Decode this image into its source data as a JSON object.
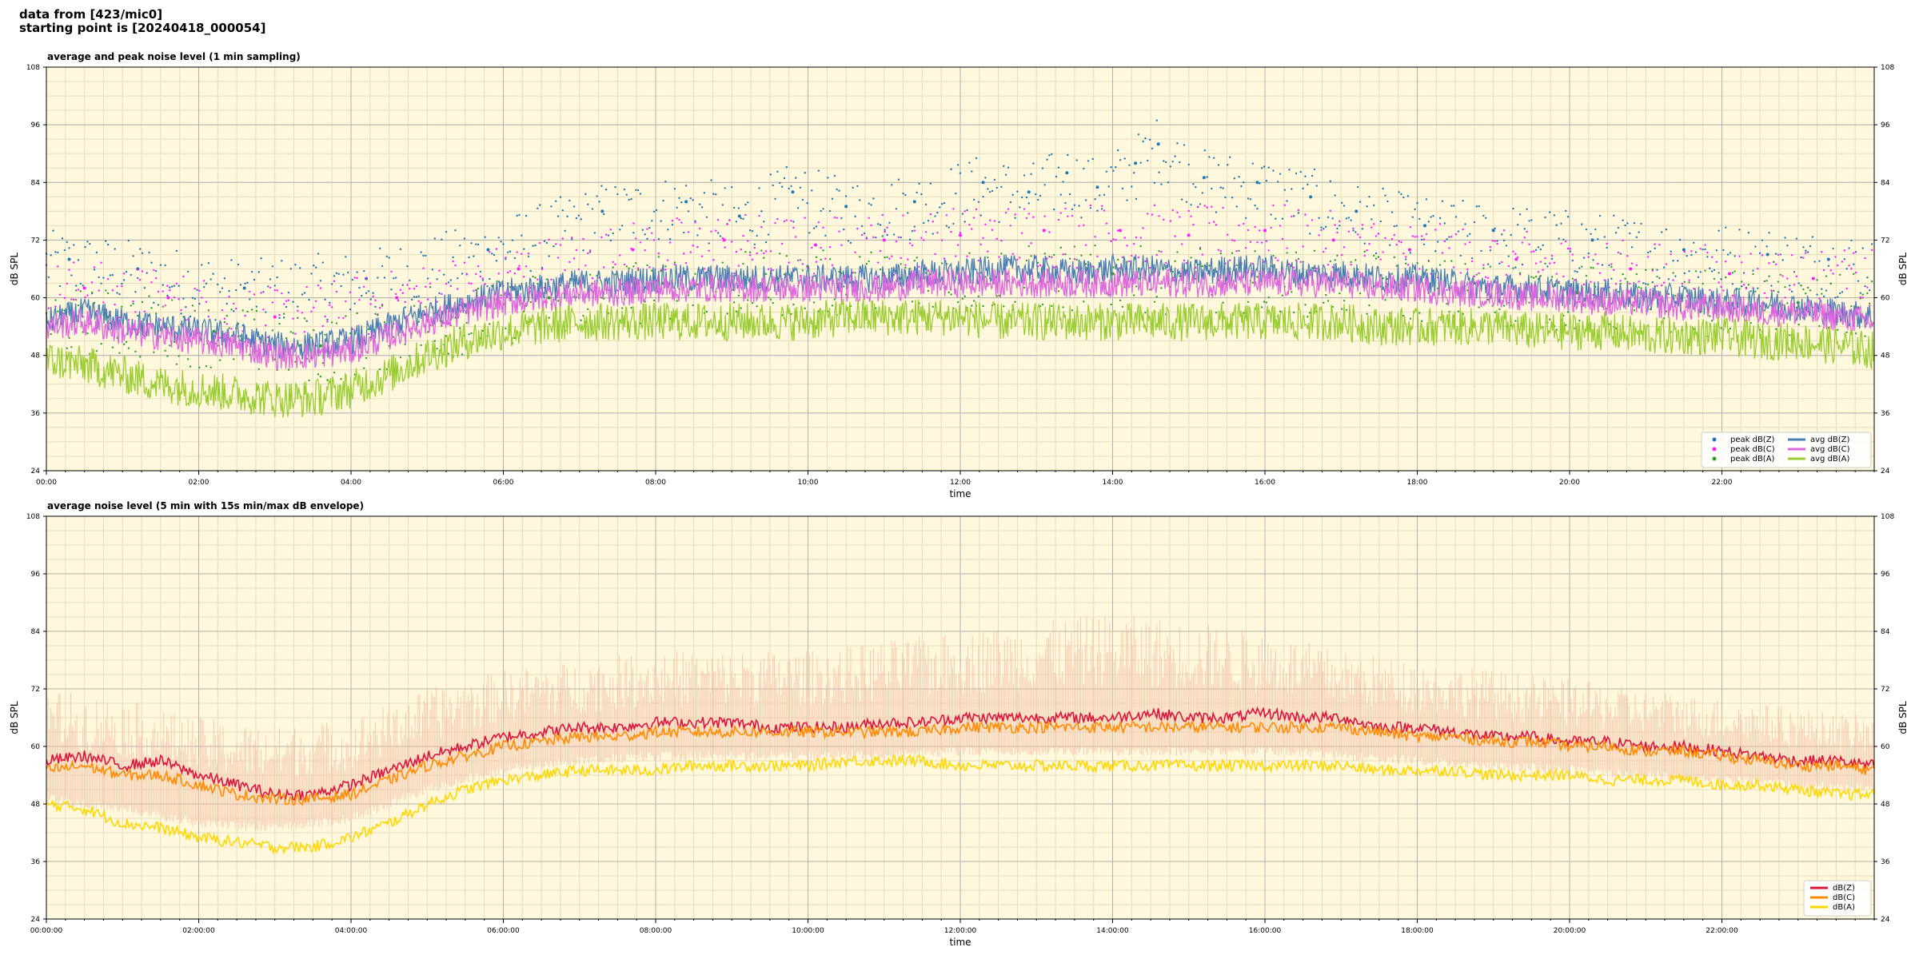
{
  "header": {
    "line1": "data from [423/mic0]",
    "line2": "starting point is [20240418_000054]"
  },
  "colors": {
    "plot_bg": "#fff8dc",
    "peak_z": "#1f77b4",
    "peak_c": "#ff1aff",
    "peak_a": "#2ca02c",
    "avg_z": "#4a7fb5",
    "avg_c": "#e066e0",
    "avg_a": "#9acd32",
    "dbz": "#dc143c",
    "dbc": "#ff8c00",
    "dba": "#ffd700",
    "envelope": "#f4b8a0"
  },
  "chart_data": [
    {
      "type": "line",
      "title": "average and peak noise level (1 min sampling)",
      "xlabel": "time",
      "ylabel": "dB SPL",
      "x_unit": "hours",
      "xlim": [
        0,
        24
      ],
      "ylim": [
        24,
        108
      ],
      "yticks": [
        24,
        36,
        48,
        60,
        72,
        84,
        96,
        108
      ],
      "xticks": [
        {
          "x": 0,
          "label": "00:00"
        },
        {
          "x": 2,
          "label": "02:00"
        },
        {
          "x": 4,
          "label": "04:00"
        },
        {
          "x": 6,
          "label": "06:00"
        },
        {
          "x": 8,
          "label": "08:00"
        },
        {
          "x": 10,
          "label": "10:00"
        },
        {
          "x": 12,
          "label": "12:00"
        },
        {
          "x": 14,
          "label": "14:00"
        },
        {
          "x": 16,
          "label": "16:00"
        },
        {
          "x": 18,
          "label": "18:00"
        },
        {
          "x": 20,
          "label": "20:00"
        },
        {
          "x": 22,
          "label": "22:00"
        }
      ],
      "grid": true,
      "legend_position": "lower-right",
      "legend_columns": 2,
      "legend": [
        {
          "name": "peak dB(Z)",
          "kind": "dot",
          "color_key": "peak_z"
        },
        {
          "name": "peak dB(C)",
          "kind": "dot",
          "color_key": "peak_c"
        },
        {
          "name": "peak dB(A)",
          "kind": "dot",
          "color_key": "peak_a"
        },
        {
          "name": "avg dB(Z)",
          "kind": "line",
          "color_key": "avg_z"
        },
        {
          "name": "avg dB(C)",
          "kind": "line",
          "color_key": "avg_c"
        },
        {
          "name": "avg dB(A)",
          "kind": "line",
          "color_key": "avg_a"
        }
      ],
      "series": [
        {
          "name": "avg dB(Z)",
          "color_key": "avg_z",
          "x": [
            0,
            0.5,
            1,
            1.5,
            2,
            2.5,
            3,
            3.5,
            4,
            4.5,
            5,
            5.5,
            6,
            6.5,
            7,
            7.5,
            8,
            8.5,
            9,
            9.5,
            10,
            10.5,
            11,
            11.5,
            12,
            12.5,
            13,
            13.5,
            14,
            14.5,
            15,
            15.5,
            16,
            16.5,
            17,
            17.5,
            18,
            18.5,
            19,
            19.5,
            20,
            20.5,
            21,
            21.5,
            22,
            22.5,
            23,
            23.5,
            24
          ],
          "y": [
            55,
            57,
            55,
            54,
            53,
            52,
            50,
            50,
            51,
            54,
            57,
            59,
            61,
            62,
            63,
            63,
            64,
            64,
            64,
            64,
            64,
            64,
            64,
            65,
            65,
            66,
            66,
            65,
            66,
            66,
            65,
            66,
            66,
            65,
            65,
            64,
            64,
            63,
            62,
            62,
            61,
            61,
            60,
            60,
            59,
            59,
            58,
            57,
            56
          ]
        },
        {
          "name": "avg dB(C)",
          "color_key": "avg_c",
          "x": [
            0,
            0.5,
            1,
            1.5,
            2,
            2.5,
            3,
            3.5,
            4,
            4.5,
            5,
            5.5,
            6,
            6.5,
            7,
            7.5,
            8,
            8.5,
            9,
            9.5,
            10,
            10.5,
            11,
            11.5,
            12,
            12.5,
            13,
            13.5,
            14,
            14.5,
            15,
            15.5,
            16,
            16.5,
            17,
            17.5,
            18,
            18.5,
            19,
            19.5,
            20,
            20.5,
            21,
            21.5,
            22,
            22.5,
            23,
            23.5,
            24
          ],
          "y": [
            54,
            55,
            53,
            52,
            51,
            50,
            48,
            48,
            49,
            52,
            55,
            57,
            59,
            60,
            61,
            61,
            62,
            62,
            62,
            62,
            62,
            62,
            62,
            63,
            63,
            63,
            63,
            63,
            63,
            63,
            63,
            63,
            63,
            63,
            63,
            62,
            62,
            61,
            61,
            60,
            60,
            59,
            59,
            58,
            58,
            57,
            57,
            56,
            55
          ]
        },
        {
          "name": "avg dB(A)",
          "color_key": "avg_a",
          "x": [
            0,
            0.5,
            1,
            1.5,
            2,
            2.5,
            3,
            3.5,
            4,
            4.5,
            5,
            5.5,
            6,
            6.5,
            7,
            7.5,
            8,
            8.5,
            9,
            9.5,
            10,
            10.5,
            11,
            11.5,
            12,
            12.5,
            13,
            13.5,
            14,
            14.5,
            15,
            15.5,
            16,
            16.5,
            17,
            17.5,
            18,
            18.5,
            19,
            19.5,
            20,
            20.5,
            21,
            21.5,
            22,
            22.5,
            23,
            23.5,
            24
          ],
          "y": [
            47,
            46,
            44,
            42,
            41,
            40,
            39,
            39,
            41,
            44,
            48,
            51,
            53,
            54,
            55,
            55,
            55,
            55,
            55,
            55,
            55,
            56,
            56,
            56,
            56,
            55,
            55,
            55,
            55,
            55,
            55,
            55,
            55,
            55,
            55,
            54,
            54,
            54,
            54,
            53,
            53,
            53,
            52,
            52,
            52,
            51,
            51,
            50,
            49
          ]
        },
        {
          "name": "peak dB(Z)",
          "kind": "scatter",
          "color_key": "peak_z",
          "x": [
            0.3,
            1.2,
            2.6,
            4.2,
            5.8,
            7.3,
            8.4,
            9.1,
            9.8,
            10.5,
            11.4,
            12.3,
            12.9,
            13.4,
            13.8,
            14.3,
            14.6,
            15.2,
            15.9,
            16.6,
            17.2,
            18.1,
            19.0,
            20.3,
            21.5,
            22.6,
            23.4
          ],
          "y": [
            68,
            66,
            62,
            64,
            70,
            78,
            80,
            77,
            82,
            79,
            80,
            84,
            82,
            86,
            83,
            88,
            92,
            85,
            84,
            81,
            78,
            75,
            74,
            72,
            70,
            69,
            68
          ]
        },
        {
          "name": "peak dB(C)",
          "kind": "scatter",
          "color_key": "peak_c",
          "x": [
            0.5,
            1.6,
            3.0,
            4.6,
            6.2,
            7.7,
            8.9,
            10.1,
            11.0,
            12.0,
            13.1,
            14.1,
            15.0,
            16.0,
            16.9,
            17.9,
            19.3,
            20.8,
            22.1,
            23.2
          ],
          "y": [
            62,
            60,
            56,
            60,
            66,
            70,
            72,
            71,
            72,
            73,
            74,
            74,
            73,
            74,
            72,
            70,
            68,
            66,
            65,
            64
          ]
        },
        {
          "name": "peak dB(A)",
          "kind": "scatter",
          "color_key": "peak_a",
          "x": [
            0.8,
            2.2,
            3.6,
            5.2,
            6.6,
            8.1,
            9.6,
            11.2,
            12.6,
            14.0,
            15.5,
            17.0,
            18.6,
            20.1,
            21.7,
            23.0
          ],
          "y": [
            56,
            53,
            50,
            55,
            60,
            63,
            64,
            64,
            65,
            65,
            64,
            64,
            62,
            61,
            60,
            59
          ]
        }
      ]
    },
    {
      "type": "line",
      "title": "average noise level (5 min with 15s min/max dB envelope)",
      "xlabel": "time",
      "ylabel": "dB SPL",
      "x_unit": "hours",
      "xlim": [
        0,
        24
      ],
      "ylim": [
        24,
        108
      ],
      "yticks": [
        24,
        36,
        48,
        60,
        72,
        84,
        96,
        108
      ],
      "xticks": [
        {
          "x": 0,
          "label": "00:00:00"
        },
        {
          "x": 2,
          "label": "02:00:00"
        },
        {
          "x": 4,
          "label": "04:00:00"
        },
        {
          "x": 6,
          "label": "06:00:00"
        },
        {
          "x": 8,
          "label": "08:00:00"
        },
        {
          "x": 10,
          "label": "10:00:00"
        },
        {
          "x": 12,
          "label": "12:00:00"
        },
        {
          "x": 14,
          "label": "14:00:00"
        },
        {
          "x": 16,
          "label": "16:00:00"
        },
        {
          "x": 18,
          "label": "18:00:00"
        },
        {
          "x": 20,
          "label": "20:00:00"
        },
        {
          "x": 22,
          "label": "22:00:00"
        }
      ],
      "grid": true,
      "legend_position": "lower-right",
      "legend_columns": 1,
      "legend": [
        {
          "name": "dB(Z)",
          "kind": "line",
          "color_key": "dbz"
        },
        {
          "name": "dB(C)",
          "kind": "line",
          "color_key": "dbc"
        },
        {
          "name": "dB(A)",
          "kind": "line",
          "color_key": "dba"
        }
      ],
      "envelope": {
        "color_key": "envelope",
        "x": [
          0,
          1,
          2,
          3,
          4,
          5,
          6,
          7,
          8,
          9,
          10,
          11,
          12,
          13,
          14,
          15,
          16,
          17,
          18,
          19,
          20,
          21,
          22,
          23,
          24
        ],
        "upper": [
          72,
          70,
          66,
          64,
          66,
          72,
          76,
          78,
          80,
          80,
          80,
          82,
          84,
          86,
          88,
          86,
          84,
          80,
          78,
          76,
          74,
          72,
          70,
          68,
          66
        ],
        "lower": [
          50,
          48,
          45,
          44,
          46,
          52,
          56,
          58,
          59,
          59,
          59,
          59,
          60,
          60,
          60,
          60,
          60,
          59,
          58,
          57,
          56,
          55,
          54,
          53,
          52
        ]
      },
      "series": [
        {
          "name": "dB(Z)",
          "color_key": "dbz",
          "x": [
            0,
            0.5,
            1,
            1.5,
            2,
            2.5,
            3,
            3.5,
            4,
            4.5,
            5,
            5.5,
            6,
            6.5,
            7,
            7.5,
            8,
            8.5,
            9,
            9.5,
            10,
            10.5,
            11,
            11.5,
            12,
            12.5,
            13,
            13.5,
            14,
            14.5,
            15,
            15.5,
            16,
            16.5,
            17,
            17.5,
            18,
            18.5,
            19,
            19.5,
            20,
            20.5,
            21,
            21.5,
            22,
            22.5,
            23,
            23.5,
            24
          ],
          "y": [
            57,
            58,
            56,
            57,
            54,
            52,
            50,
            50,
            52,
            55,
            58,
            60,
            62,
            63,
            64,
            64,
            65,
            65,
            65,
            64,
            64,
            64,
            65,
            65,
            66,
            66,
            66,
            66,
            66,
            67,
            66,
            66,
            67,
            66,
            66,
            64,
            64,
            63,
            62,
            62,
            61,
            61,
            60,
            60,
            59,
            58,
            57,
            57,
            56
          ]
        },
        {
          "name": "dB(C)",
          "color_key": "dbc",
          "x": [
            0,
            0.5,
            1,
            1.5,
            2,
            2.5,
            3,
            3.5,
            4,
            4.5,
            5,
            5.5,
            6,
            6.5,
            7,
            7.5,
            8,
            8.5,
            9,
            9.5,
            10,
            10.5,
            11,
            11.5,
            12,
            12.5,
            13,
            13.5,
            14,
            14.5,
            15,
            15.5,
            16,
            16.5,
            17,
            17.5,
            18,
            18.5,
            19,
            19.5,
            20,
            20.5,
            21,
            21.5,
            22,
            22.5,
            23,
            23.5,
            24
          ],
          "y": [
            55,
            56,
            54,
            54,
            52,
            50,
            49,
            49,
            50,
            53,
            56,
            58,
            60,
            61,
            62,
            62,
            63,
            63,
            63,
            63,
            63,
            63,
            63,
            63,
            64,
            64,
            64,
            64,
            64,
            64,
            64,
            64,
            64,
            64,
            64,
            63,
            62,
            62,
            61,
            61,
            60,
            60,
            59,
            59,
            58,
            57,
            56,
            56,
            55
          ]
        },
        {
          "name": "dB(A)",
          "color_key": "dba",
          "x": [
            0,
            0.5,
            1,
            1.5,
            2,
            2.5,
            3,
            3.5,
            4,
            4.5,
            5,
            5.5,
            6,
            6.5,
            7,
            7.5,
            8,
            8.5,
            9,
            9.5,
            10,
            10.5,
            11,
            11.5,
            12,
            12.5,
            13,
            13.5,
            14,
            14.5,
            15,
            15.5,
            16,
            16.5,
            17,
            17.5,
            18,
            18.5,
            19,
            19.5,
            20,
            20.5,
            21,
            21.5,
            22,
            22.5,
            23,
            23.5,
            24
          ],
          "y": [
            48,
            47,
            44,
            43,
            41,
            40,
            39,
            39,
            41,
            44,
            48,
            51,
            53,
            54,
            55,
            55,
            55,
            56,
            56,
            56,
            56,
            57,
            57,
            57,
            56,
            56,
            56,
            56,
            56,
            56,
            56,
            56,
            56,
            56,
            56,
            55,
            55,
            55,
            54,
            54,
            54,
            53,
            53,
            53,
            52,
            52,
            51,
            50,
            50
          ]
        }
      ]
    }
  ]
}
